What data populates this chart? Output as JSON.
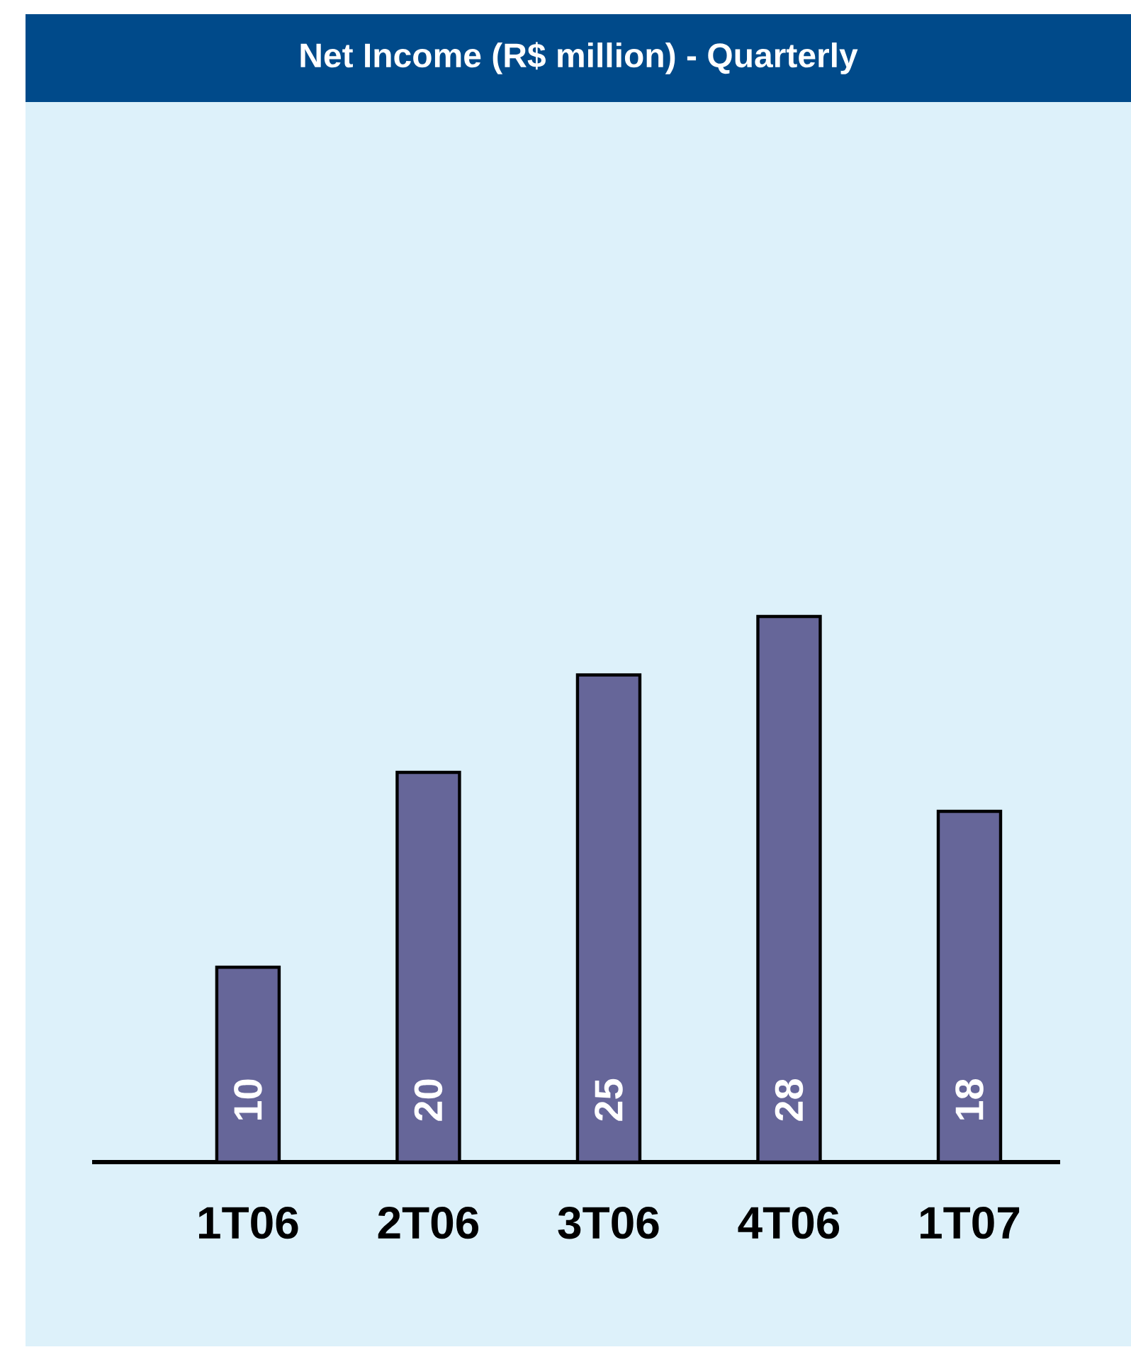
{
  "chart_data": {
    "type": "bar",
    "title": "Net Income (R$ million) - Quarterly",
    "categories": [
      "1T06",
      "2T06",
      "3T06",
      "4T06",
      "1T07"
    ],
    "values": [
      10,
      20,
      25,
      28,
      18
    ],
    "color": "#666699",
    "data_labels": true
  }
}
